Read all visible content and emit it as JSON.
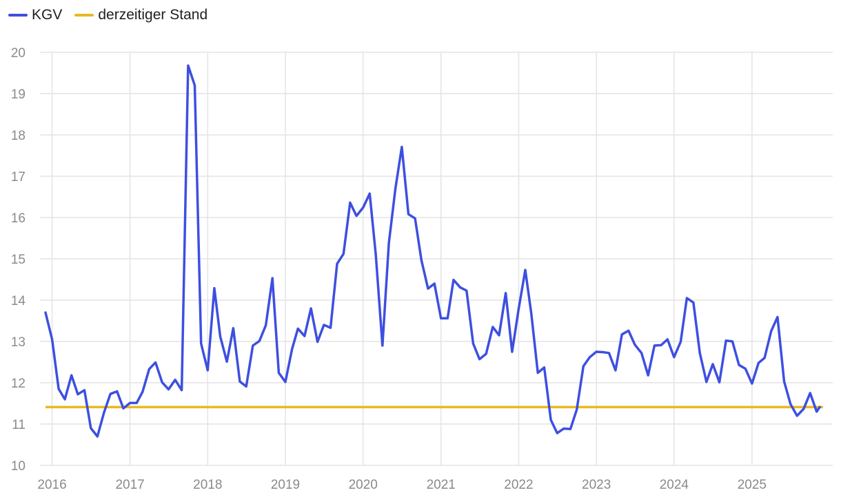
{
  "legend": {
    "series_label": "KGV",
    "reference_label": "derzeitiger Stand"
  },
  "colors": {
    "series": "#3d4fe0",
    "reference": "#e8b923",
    "grid": "#e4e4e4",
    "tick_text": "#8a8a8a"
  },
  "chart_data": {
    "type": "line",
    "title": "",
    "xlabel": "",
    "ylabel": "",
    "ylim": [
      10,
      20
    ],
    "yticks": [
      10,
      11,
      12,
      13,
      14,
      15,
      16,
      17,
      18,
      19,
      20
    ],
    "xlim": [
      "2015-12-01",
      "2025-12-01"
    ],
    "xticks": [
      "2016",
      "2017",
      "2018",
      "2019",
      "2020",
      "2021",
      "2022",
      "2023",
      "2024",
      "2025"
    ],
    "grid": true,
    "legend_position": "top-left",
    "reference_line": {
      "name": "derzeitiger Stand",
      "value": 11.41
    },
    "series": [
      {
        "name": "KGV",
        "x": [
          "2015-12-01",
          "2016-01-01",
          "2016-02-01",
          "2016-03-01",
          "2016-04-01",
          "2016-05-01",
          "2016-06-01",
          "2016-07-01",
          "2016-08-01",
          "2016-09-01",
          "2016-10-01",
          "2016-11-01",
          "2016-12-01",
          "2017-01-01",
          "2017-02-01",
          "2017-03-01",
          "2017-04-01",
          "2017-05-01",
          "2017-06-01",
          "2017-07-01",
          "2017-08-01",
          "2017-09-01",
          "2017-10-01",
          "2017-11-01",
          "2017-12-01",
          "2018-01-01",
          "2018-02-01",
          "2018-03-01",
          "2018-04-01",
          "2018-05-01",
          "2018-06-01",
          "2018-07-01",
          "2018-08-01",
          "2018-09-01",
          "2018-10-01",
          "2018-11-01",
          "2018-12-01",
          "2019-01-01",
          "2019-02-01",
          "2019-03-01",
          "2019-04-01",
          "2019-05-01",
          "2019-06-01",
          "2019-07-01",
          "2019-08-01",
          "2019-09-01",
          "2019-10-01",
          "2019-11-01",
          "2019-12-01",
          "2020-01-01",
          "2020-02-01",
          "2020-03-01",
          "2020-04-01",
          "2020-05-01",
          "2020-06-01",
          "2020-07-01",
          "2020-08-01",
          "2020-09-01",
          "2020-10-01",
          "2020-11-01",
          "2020-12-01",
          "2021-01-01",
          "2021-02-01",
          "2021-03-01",
          "2021-04-01",
          "2021-05-01",
          "2021-06-01",
          "2021-07-01",
          "2021-08-01",
          "2021-09-01",
          "2021-10-01",
          "2021-11-01",
          "2021-12-01",
          "2022-01-01",
          "2022-02-01",
          "2022-03-01",
          "2022-04-01",
          "2022-05-01",
          "2022-06-01",
          "2022-07-01",
          "2022-08-01",
          "2022-09-01",
          "2022-10-01",
          "2022-11-01",
          "2022-12-01",
          "2023-01-01",
          "2023-02-01",
          "2023-03-01",
          "2023-04-01",
          "2023-05-01",
          "2023-06-01",
          "2023-07-01",
          "2023-08-01",
          "2023-09-01",
          "2023-10-01",
          "2023-11-01",
          "2023-12-01",
          "2024-01-01",
          "2024-02-01",
          "2024-03-01",
          "2024-04-01",
          "2024-05-01",
          "2024-06-01",
          "2024-07-01",
          "2024-08-01",
          "2024-09-01",
          "2024-10-01",
          "2024-11-01",
          "2024-12-01",
          "2025-01-01",
          "2025-02-01",
          "2025-03-01",
          "2025-04-01",
          "2025-05-01",
          "2025-06-01",
          "2025-07-01",
          "2025-08-01",
          "2025-09-01",
          "2025-10-01",
          "2025-11-01",
          "2025-11-15"
        ],
        "values": [
          13.7,
          13.05,
          11.85,
          11.6,
          12.18,
          11.72,
          11.82,
          10.9,
          10.7,
          11.28,
          11.73,
          11.79,
          11.38,
          11.51,
          11.51,
          11.78,
          12.33,
          12.49,
          12.01,
          11.84,
          12.07,
          11.82,
          19.68,
          19.2,
          12.95,
          12.3,
          14.29,
          13.12,
          12.51,
          13.32,
          12.03,
          11.91,
          12.9,
          13.01,
          13.39,
          14.53,
          12.24,
          12.02,
          12.81,
          13.31,
          13.13,
          13.8,
          12.99,
          13.4,
          13.33,
          14.88,
          15.12,
          16.36,
          16.04,
          16.24,
          16.58,
          15.09,
          12.9,
          15.38,
          16.7,
          17.71,
          16.08,
          15.98,
          14.97,
          14.28,
          14.4,
          13.56,
          13.56,
          14.49,
          14.31,
          14.23,
          12.95,
          12.57,
          12.7,
          13.35,
          13.15,
          14.17,
          12.75,
          13.79,
          14.73,
          13.68,
          12.24,
          12.37,
          11.1,
          10.78,
          10.89,
          10.88,
          11.35,
          12.4,
          12.62,
          12.75,
          12.74,
          12.72,
          12.3,
          13.17,
          13.26,
          12.92,
          12.72,
          12.18,
          12.9,
          12.91,
          13.05,
          12.62,
          12.99,
          14.05,
          13.94,
          12.72,
          12.02,
          12.45,
          12.01,
          13.02,
          13.0,
          12.43,
          12.34,
          11.98,
          12.48,
          12.6,
          13.25,
          13.59,
          12.03,
          11.48,
          11.2,
          11.37,
          11.75,
          11.3,
          11.41
        ]
      }
    ]
  }
}
